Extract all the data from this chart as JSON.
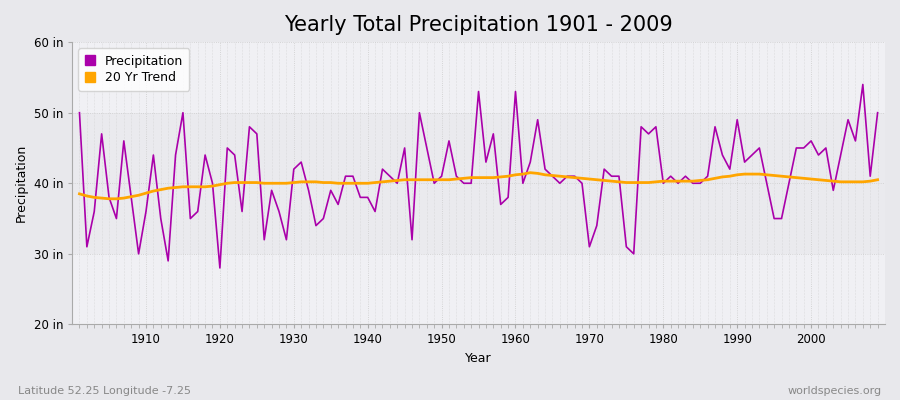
{
  "title": "Yearly Total Precipitation 1901 - 2009",
  "xlabel": "Year",
  "ylabel": "Precipitation",
  "subtitle_lat": "Latitude 52.25 Longitude -7.25",
  "watermark": "worldspecies.org",
  "ylim": [
    20,
    60
  ],
  "yticks": [
    20,
    30,
    40,
    50,
    60
  ],
  "ytick_labels": [
    "20 in",
    "30 in",
    "40 in",
    "50 in",
    "60 in"
  ],
  "years": [
    1901,
    1902,
    1903,
    1904,
    1905,
    1906,
    1907,
    1908,
    1909,
    1910,
    1911,
    1912,
    1913,
    1914,
    1915,
    1916,
    1917,
    1918,
    1919,
    1920,
    1921,
    1922,
    1923,
    1924,
    1925,
    1926,
    1927,
    1928,
    1929,
    1930,
    1931,
    1932,
    1933,
    1934,
    1935,
    1936,
    1937,
    1938,
    1939,
    1940,
    1941,
    1942,
    1943,
    1944,
    1945,
    1946,
    1947,
    1948,
    1949,
    1950,
    1951,
    1952,
    1953,
    1954,
    1955,
    1956,
    1957,
    1958,
    1959,
    1960,
    1961,
    1962,
    1963,
    1964,
    1965,
    1966,
    1967,
    1968,
    1969,
    1970,
    1971,
    1972,
    1973,
    1974,
    1975,
    1976,
    1977,
    1978,
    1979,
    1980,
    1981,
    1982,
    1983,
    1984,
    1985,
    1986,
    1987,
    1988,
    1989,
    1990,
    1991,
    1992,
    1993,
    1994,
    1995,
    1996,
    1997,
    1998,
    1999,
    2000,
    2001,
    2002,
    2003,
    2004,
    2005,
    2006,
    2007,
    2008,
    2009
  ],
  "precip": [
    50,
    31,
    36,
    47,
    38,
    35,
    46,
    38,
    30,
    36,
    44,
    35,
    29,
    44,
    50,
    35,
    36,
    44,
    40,
    28,
    45,
    44,
    36,
    48,
    47,
    32,
    39,
    36,
    32,
    42,
    43,
    39,
    34,
    35,
    39,
    37,
    41,
    41,
    38,
    38,
    36,
    42,
    41,
    40,
    45,
    32,
    50,
    45,
    40,
    41,
    46,
    41,
    40,
    40,
    53,
    43,
    47,
    37,
    38,
    53,
    40,
    43,
    49,
    42,
    41,
    40,
    41,
    41,
    40,
    31,
    34,
    42,
    41,
    41,
    31,
    30,
    48,
    47,
    48,
    40,
    41,
    40,
    41,
    40,
    40,
    41,
    48,
    44,
    42,
    49,
    43,
    44,
    45,
    40,
    35,
    35,
    40,
    45,
    45,
    46,
    44,
    45,
    39,
    44,
    49,
    46,
    54,
    41,
    50
  ],
  "trend": [
    38.5,
    38.2,
    38.0,
    37.9,
    37.8,
    37.8,
    37.9,
    38.1,
    38.3,
    38.6,
    38.9,
    39.1,
    39.3,
    39.4,
    39.5,
    39.5,
    39.5,
    39.5,
    39.6,
    39.8,
    40.0,
    40.1,
    40.1,
    40.1,
    40.1,
    40.0,
    40.0,
    40.0,
    40.0,
    40.1,
    40.2,
    40.2,
    40.2,
    40.1,
    40.1,
    40.0,
    40.0,
    40.0,
    40.0,
    40.0,
    40.1,
    40.2,
    40.3,
    40.4,
    40.5,
    40.5,
    40.5,
    40.5,
    40.5,
    40.5,
    40.5,
    40.6,
    40.7,
    40.8,
    40.8,
    40.8,
    40.8,
    40.9,
    41.0,
    41.2,
    41.3,
    41.5,
    41.4,
    41.2,
    41.1,
    41.0,
    40.9,
    40.8,
    40.7,
    40.6,
    40.5,
    40.4,
    40.3,
    40.2,
    40.1,
    40.1,
    40.1,
    40.1,
    40.2,
    40.3,
    40.3,
    40.3,
    40.3,
    40.3,
    40.4,
    40.5,
    40.7,
    40.9,
    41.0,
    41.2,
    41.3,
    41.3,
    41.3,
    41.2,
    41.1,
    41.0,
    40.9,
    40.8,
    40.7,
    40.6,
    40.5,
    40.4,
    40.3,
    40.2,
    40.2,
    40.2,
    40.2,
    40.3,
    40.5
  ],
  "precip_color": "#AA00AA",
  "trend_color": "#FFA500",
  "bg_color": "#E8E8EC",
  "plot_bg_color": "#EAEAEE",
  "band_color_light": "#F0F0F4",
  "grid_color": "#CCCCCC",
  "xticks": [
    1910,
    1920,
    1930,
    1940,
    1950,
    1960,
    1970,
    1980,
    1990,
    2000
  ],
  "title_fontsize": 15,
  "axis_label_fontsize": 9,
  "tick_fontsize": 8.5,
  "legend_fontsize": 9
}
